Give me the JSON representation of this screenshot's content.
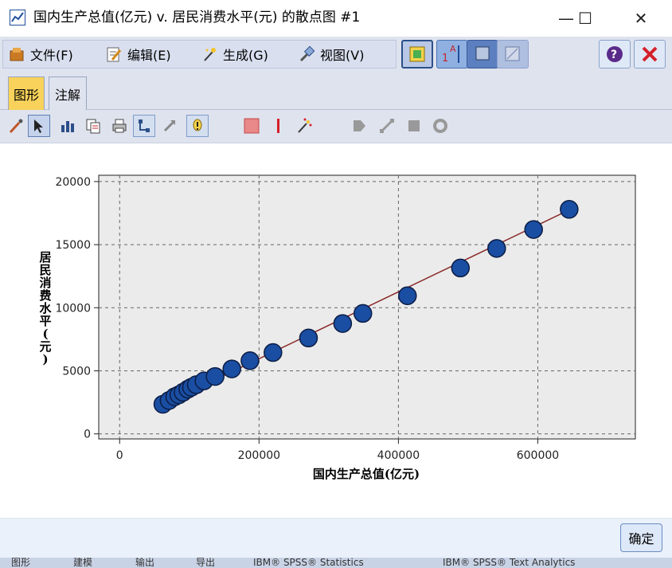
{
  "window": {
    "title": "国内生产总值(亿元) v. 居民消费水平(元) 的散点图 #1",
    "minimize_glyph": "—",
    "maximize_glyph": "☐",
    "close_glyph": "✕"
  },
  "menu": {
    "items": [
      {
        "label": "文件(F)",
        "icon": "folder-icon"
      },
      {
        "label": "编辑(E)",
        "icon": "edit-icon"
      },
      {
        "label": "生成(G)",
        "icon": "generate-icon"
      },
      {
        "label": "视图(V)",
        "icon": "view-icon"
      }
    ]
  },
  "tabs": {
    "graph_label": "图形",
    "annotation_label": "注解"
  },
  "footer": {
    "ok_label": "确定"
  },
  "taskbar": {
    "items": [
      "图形",
      "建模",
      "输出",
      "导出",
      "IBM® SPSS® Statistics",
      "IBM® SPSS® Text Analytics"
    ]
  },
  "colors": {
    "point_fill": "#1a4ea3",
    "point_stroke": "#0b1c44",
    "fit_line": "#8c2b2b",
    "plot_background": "#ebebeb",
    "active_tab": "#f8d25a"
  },
  "chart_data": {
    "type": "scatter",
    "title": "",
    "xlabel": "国内生产总值(亿元)",
    "ylabel": "居民消费水平(元)",
    "xlim": [
      -30000,
      740000
    ],
    "ylim": [
      -400,
      20500
    ],
    "xticks": [
      0,
      200000,
      400000,
      600000
    ],
    "xtick_labels": [
      "0",
      "200000",
      "400000",
      "600000"
    ],
    "yticks": [
      0,
      5000,
      10000,
      15000,
      20000
    ],
    "ytick_labels": [
      "0",
      "5000",
      "10000",
      "15000",
      "20000"
    ],
    "grid": true,
    "fit_line": {
      "x": [
        62000,
        645000
      ],
      "y": [
        2300,
        17750
      ]
    },
    "points": [
      {
        "x": 62000,
        "y": 2350
      },
      {
        "x": 71000,
        "y": 2650
      },
      {
        "x": 79000,
        "y": 2950
      },
      {
        "x": 85000,
        "y": 3100
      },
      {
        "x": 91000,
        "y": 3300
      },
      {
        "x": 98000,
        "y": 3550
      },
      {
        "x": 103000,
        "y": 3700
      },
      {
        "x": 110000,
        "y": 3900
      },
      {
        "x": 121000,
        "y": 4200
      },
      {
        "x": 137000,
        "y": 4550
      },
      {
        "x": 161000,
        "y": 5150
      },
      {
        "x": 187000,
        "y": 5800
      },
      {
        "x": 220000,
        "y": 6450
      },
      {
        "x": 271000,
        "y": 7600
      },
      {
        "x": 320000,
        "y": 8750
      },
      {
        "x": 349000,
        "y": 9550
      },
      {
        "x": 413000,
        "y": 10950
      },
      {
        "x": 489000,
        "y": 13150
      },
      {
        "x": 541000,
        "y": 14700
      },
      {
        "x": 594000,
        "y": 16200
      },
      {
        "x": 645000,
        "y": 17800
      }
    ]
  }
}
